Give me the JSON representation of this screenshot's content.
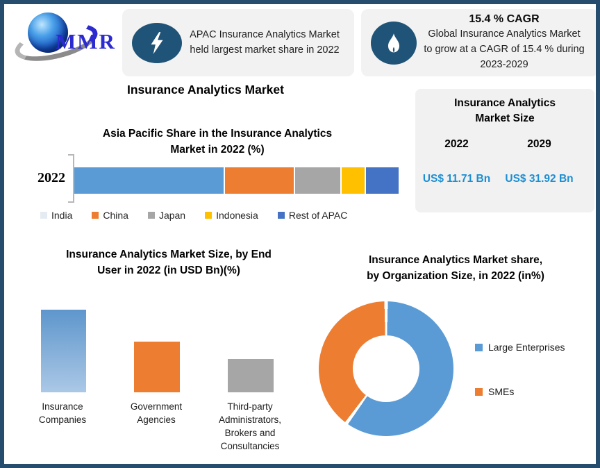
{
  "page": {
    "border_color": "#264d6e"
  },
  "logo": {
    "text": "MMR"
  },
  "header_callouts": [
    {
      "icon": "lightning-icon",
      "lines": [
        "APAC Insurance Analytics Market",
        "held largest market share in 2022"
      ]
    },
    {
      "icon": "flame-icon",
      "title": "15.4 % CAGR",
      "lines": [
        "Global Insurance Analytics Market",
        "to grow at a CAGR of 15.4 % during",
        "2023-2029"
      ]
    }
  ],
  "main_title": "Insurance Analytics Market",
  "market_size_panel": {
    "title": "Insurance Analytics Market Size",
    "title_lines": [
      "Insurance Analytics",
      "Market Size"
    ],
    "columns": [
      {
        "year": "2022",
        "value": "US$ 11.71 Bn"
      },
      {
        "year": "2029",
        "value": "US$ 31.92 Bn"
      }
    ],
    "value_color": "#1b8ed2"
  },
  "chart_data": [
    {
      "type": "bar",
      "subtype": "horizontal-stacked",
      "title": "Asia Pacific Share in the Insurance Analytics Market in 2022 (%)",
      "title_lines": [
        "Asia Pacific Share in the Insurance Analytics",
        "Market in 2022 (%)"
      ],
      "categories": [
        "2022"
      ],
      "unit": "%",
      "legend_position": "bottom",
      "series": [
        {
          "name": "India",
          "value": 46,
          "color": "#5B9BD5",
          "legend_color": "#e4ebf3"
        },
        {
          "name": "China",
          "value": 21,
          "color": "#ED7D31",
          "legend_color": "#ED7D31"
        },
        {
          "name": "Japan",
          "value": 14,
          "color": "#A6A6A6",
          "legend_color": "#A6A6A6"
        },
        {
          "name": "Indonesia",
          "value": 7,
          "color": "#FFC000",
          "legend_color": "#FFC000"
        },
        {
          "name": "Rest of APAC",
          "value": 10,
          "color": "#4472C4",
          "legend_color": "#4472C4"
        }
      ]
    },
    {
      "type": "bar",
      "subtype": "vertical",
      "title": "Insurance Analytics Market Size, by End User in 2022 (in USD Bn)(%)",
      "title_lines": [
        "Insurance Analytics Market Size, by End",
        "User in 2022 (in USD Bn)(%)"
      ],
      "bars": [
        {
          "label": "Insurance Companies",
          "relative_height": 1.0,
          "colors": [
            "#5e96cc",
            "#abc8e6"
          ]
        },
        {
          "label": "Government Agencies",
          "relative_height": 0.61,
          "colors": [
            "#ED7D31"
          ]
        },
        {
          "label": "Third-party Administrators, Brokers and Consultancies",
          "relative_height": 0.4,
          "colors": [
            "#A6A6A6"
          ]
        }
      ]
    },
    {
      "type": "pie",
      "subtype": "donut",
      "title": "Insurance Analytics Market share, by Organization Size, in 2022 (in%)",
      "title_lines": [
        "Insurance Analytics Market share,",
        "by Organization Size, in 2022 (in%)"
      ],
      "legend_position": "right",
      "slices": [
        {
          "label": "Large Enterprises",
          "value": 60,
          "color": "#5B9BD5"
        },
        {
          "label": "SMEs",
          "value": 40,
          "color": "#ED7D31"
        }
      ]
    }
  ]
}
